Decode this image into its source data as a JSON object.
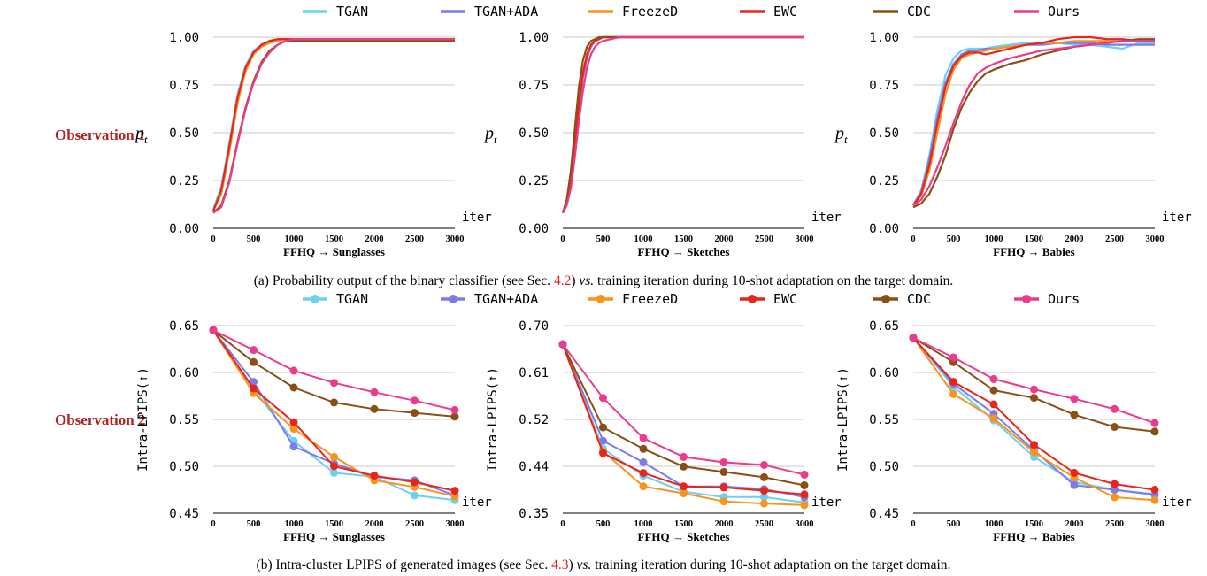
{
  "legend_top": [
    "TGAN",
    "TGAN+ADA",
    "FreezeD",
    "EWC",
    "CDC",
    "Ours"
  ],
  "legend_bottom": [
    "TGAN",
    "TGAN+ADA",
    "FreezeD",
    "EWC",
    "CDC",
    "Ours"
  ],
  "colors": {
    "TGAN": "#6ccff6",
    "TGAN+ADA": "#7b7bec",
    "FreezeD": "#f7941d",
    "EWC": "#e8251b",
    "CDC": "#8b4e14",
    "Ours": "#ec3a8c",
    "observation": "#b22222"
  },
  "observation1": "Observation 1",
  "observation2": "Observation 2",
  "ylabel_top": "p",
  "ylabel_top_sub": "t",
  "ylabel_bottom": "Intra-LPIPS(↑)",
  "xunit": "iter",
  "caption_a": {
    "before": "(a) Probability output of the binary classifier (see Sec. ",
    "ref": "4.2",
    "mid": ") ",
    "vs": "vs.",
    "after": " training iteration during 10-shot adaptation on the target domain."
  },
  "caption_b": {
    "before": "(b) Intra-cluster LPIPS of generated images (see Sec. ",
    "ref": "4.3",
    "mid": ") ",
    "vs": "vs.",
    "after": " training iteration during 10-shot adaptation on the target domain."
  },
  "chart_data": [
    {
      "type": "line",
      "row": "top",
      "xlabel": "FFHQ → Sunglasses",
      "ylabel": "p_t",
      "xlim": [
        0,
        3000
      ],
      "ylim": [
        0,
        1
      ],
      "xticks": [
        "0",
        "500",
        "1000",
        "1500",
        "2000",
        "2500",
        "3000"
      ],
      "yticks": [
        "0.00",
        "0.25",
        "0.50",
        "0.75",
        "1.00"
      ],
      "x": [
        0,
        100,
        200,
        300,
        400,
        500,
        600,
        700,
        800,
        900,
        1000,
        1250,
        1500,
        2000,
        2500,
        3000
      ],
      "series": [
        {
          "name": "TGAN",
          "values": [
            0.1,
            0.22,
            0.45,
            0.7,
            0.85,
            0.93,
            0.96,
            0.98,
            0.99,
            0.99,
            0.99,
            0.99,
            0.99,
            0.99,
            0.99,
            0.99
          ]
        },
        {
          "name": "TGAN+ADA",
          "values": [
            0.09,
            0.2,
            0.42,
            0.67,
            0.83,
            0.92,
            0.96,
            0.98,
            0.99,
            0.99,
            0.99,
            0.99,
            0.99,
            0.99,
            0.99,
            0.99
          ]
        },
        {
          "name": "FreezeD",
          "values": [
            0.09,
            0.18,
            0.4,
            0.65,
            0.82,
            0.91,
            0.95,
            0.97,
            0.98,
            0.99,
            0.99,
            0.99,
            0.99,
            0.99,
            0.99,
            0.99
          ]
        },
        {
          "name": "EWC",
          "values": [
            0.09,
            0.2,
            0.43,
            0.68,
            0.84,
            0.92,
            0.96,
            0.98,
            0.99,
            0.99,
            0.99,
            0.99,
            0.99,
            0.99,
            0.99,
            0.99
          ]
        },
        {
          "name": "CDC",
          "values": [
            0.08,
            0.12,
            0.25,
            0.45,
            0.63,
            0.77,
            0.87,
            0.93,
            0.96,
            0.98,
            0.98,
            0.98,
            0.98,
            0.98,
            0.98,
            0.98
          ]
        },
        {
          "name": "Ours",
          "values": [
            0.08,
            0.11,
            0.24,
            0.44,
            0.62,
            0.76,
            0.86,
            0.92,
            0.96,
            0.98,
            0.99,
            0.99,
            0.99,
            0.99,
            0.99,
            0.99
          ]
        }
      ]
    },
    {
      "type": "line",
      "row": "top",
      "xlabel": "FFHQ → Sketches",
      "ylabel": "p_t",
      "xlim": [
        0,
        3000
      ],
      "ylim": [
        0,
        1
      ],
      "xticks": [
        "0",
        "500",
        "1000",
        "1500",
        "2000",
        "2500",
        "3000"
      ],
      "yticks": [
        "0.00",
        "0.25",
        "0.50",
        "0.75",
        "1.00"
      ],
      "x": [
        0,
        50,
        100,
        150,
        200,
        250,
        300,
        350,
        400,
        450,
        500,
        600,
        700,
        800,
        1000,
        1500,
        2000,
        2500,
        3000
      ],
      "series": [
        {
          "name": "TGAN",
          "values": [
            0.08,
            0.13,
            0.24,
            0.42,
            0.63,
            0.8,
            0.9,
            0.95,
            0.98,
            0.99,
            1.0,
            1.0,
            1.0,
            1.0,
            1.0,
            1.0,
            1.0,
            1.0,
            1.0
          ]
        },
        {
          "name": "TGAN+ADA",
          "values": [
            0.08,
            0.13,
            0.23,
            0.41,
            0.62,
            0.79,
            0.89,
            0.95,
            0.98,
            0.99,
            1.0,
            1.0,
            1.0,
            1.0,
            1.0,
            1.0,
            1.0,
            1.0,
            1.0
          ]
        },
        {
          "name": "FreezeD",
          "values": [
            0.08,
            0.14,
            0.26,
            0.45,
            0.66,
            0.82,
            0.91,
            0.96,
            0.98,
            0.99,
            1.0,
            1.0,
            1.0,
            1.0,
            1.0,
            1.0,
            1.0,
            1.0,
            1.0
          ]
        },
        {
          "name": "EWC",
          "values": [
            0.08,
            0.14,
            0.25,
            0.44,
            0.65,
            0.81,
            0.91,
            0.96,
            0.98,
            0.99,
            1.0,
            1.0,
            1.0,
            1.0,
            1.0,
            1.0,
            1.0,
            1.0,
            1.0
          ]
        },
        {
          "name": "CDC",
          "values": [
            0.08,
            0.15,
            0.3,
            0.52,
            0.74,
            0.88,
            0.95,
            0.98,
            0.99,
            1.0,
            1.0,
            1.0,
            1.0,
            1.0,
            1.0,
            1.0,
            1.0,
            1.0,
            1.0
          ]
        },
        {
          "name": "Ours",
          "values": [
            0.08,
            0.12,
            0.21,
            0.37,
            0.56,
            0.72,
            0.84,
            0.91,
            0.95,
            0.97,
            0.98,
            0.99,
            1.0,
            1.0,
            1.0,
            1.0,
            1.0,
            1.0,
            1.0
          ]
        }
      ]
    },
    {
      "type": "line",
      "row": "top",
      "xlabel": "FFHQ → Babies",
      "ylabel": "p_t",
      "xlim": [
        0,
        3000
      ],
      "ylim": [
        0,
        1
      ],
      "xticks": [
        "0",
        "500",
        "1000",
        "1500",
        "2000",
        "2500",
        "3000"
      ],
      "yticks": [
        "0.00",
        "0.25",
        "0.50",
        "0.75",
        "1.00"
      ],
      "x": [
        0,
        100,
        200,
        300,
        400,
        500,
        600,
        700,
        800,
        900,
        1000,
        1200,
        1400,
        1600,
        1800,
        2000,
        2200,
        2400,
        2600,
        2800,
        3000
      ],
      "series": [
        {
          "name": "TGAN",
          "values": [
            0.12,
            0.2,
            0.38,
            0.62,
            0.8,
            0.89,
            0.93,
            0.94,
            0.94,
            0.94,
            0.95,
            0.96,
            0.97,
            0.97,
            0.97,
            0.96,
            0.96,
            0.95,
            0.94,
            0.97,
            0.97
          ]
        },
        {
          "name": "TGAN+ADA",
          "values": [
            0.12,
            0.19,
            0.36,
            0.58,
            0.76,
            0.86,
            0.91,
            0.93,
            0.93,
            0.94,
            0.94,
            0.95,
            0.96,
            0.96,
            0.97,
            0.97,
            0.97,
            0.96,
            0.96,
            0.96,
            0.96
          ]
        },
        {
          "name": "FreezeD",
          "values": [
            0.12,
            0.17,
            0.3,
            0.5,
            0.7,
            0.83,
            0.89,
            0.91,
            0.92,
            0.93,
            0.94,
            0.95,
            0.96,
            0.97,
            0.97,
            0.98,
            0.98,
            0.98,
            0.98,
            0.98,
            0.98
          ]
        },
        {
          "name": "EWC",
          "values": [
            0.12,
            0.18,
            0.33,
            0.55,
            0.74,
            0.85,
            0.9,
            0.92,
            0.92,
            0.91,
            0.92,
            0.94,
            0.96,
            0.97,
            0.99,
            1.0,
            1.0,
            0.99,
            0.99,
            0.98,
            0.98
          ]
        },
        {
          "name": "CDC",
          "values": [
            0.11,
            0.13,
            0.18,
            0.27,
            0.38,
            0.52,
            0.63,
            0.71,
            0.77,
            0.81,
            0.83,
            0.86,
            0.88,
            0.91,
            0.93,
            0.95,
            0.96,
            0.97,
            0.98,
            0.99,
            0.99
          ]
        },
        {
          "name": "Ours",
          "values": [
            0.12,
            0.15,
            0.22,
            0.32,
            0.43,
            0.55,
            0.66,
            0.75,
            0.81,
            0.84,
            0.86,
            0.89,
            0.91,
            0.93,
            0.94,
            0.95,
            0.96,
            0.97,
            0.98,
            0.98,
            0.98
          ]
        }
      ]
    },
    {
      "type": "line",
      "row": "bottom",
      "xlabel": "FFHQ → Sunglasses",
      "ylabel": "Intra-LPIPS(↑)",
      "xlim": [
        0,
        3000
      ],
      "ylim": [
        0.45,
        0.65
      ],
      "xticks": [
        "0",
        "500",
        "1000",
        "1500",
        "2000",
        "2500",
        "3000"
      ],
      "yticks": [
        "0.45",
        "0.50",
        "0.55",
        "0.60",
        "0.65"
      ],
      "x": [
        0,
        500,
        1000,
        1500,
        2000,
        2500,
        3000
      ],
      "series": [
        {
          "name": "TGAN",
          "values": [
            0.645,
            0.582,
            0.527,
            0.493,
            0.489,
            0.469,
            0.464
          ]
        },
        {
          "name": "TGAN+ADA",
          "values": [
            0.645,
            0.59,
            0.521,
            0.503,
            0.489,
            0.485,
            0.469
          ]
        },
        {
          "name": "FreezeD",
          "values": [
            0.645,
            0.578,
            0.54,
            0.51,
            0.485,
            0.478,
            0.468
          ]
        },
        {
          "name": "EWC",
          "values": [
            0.645,
            0.583,
            0.547,
            0.5,
            0.49,
            0.483,
            0.474
          ]
        },
        {
          "name": "CDC",
          "values": [
            0.645,
            0.611,
            0.584,
            0.568,
            0.561,
            0.557,
            0.553
          ]
        },
        {
          "name": "Ours",
          "values": [
            0.645,
            0.624,
            0.602,
            0.589,
            0.579,
            0.57,
            0.56
          ]
        }
      ]
    },
    {
      "type": "line",
      "row": "bottom",
      "xlabel": "FFHQ → Sketches",
      "ylabel": "Intra-LPIPS(↑)",
      "xlim": [
        0,
        3000
      ],
      "ylim": [
        0.35,
        0.7
      ],
      "xticks": [
        "0",
        "500",
        "1000",
        "1500",
        "2000",
        "2500",
        "3000"
      ],
      "yticks": [
        "0.35",
        "0.44",
        "0.52",
        "0.61",
        "0.70"
      ],
      "x": [
        0,
        500,
        1000,
        1500,
        2000,
        2500,
        3000
      ],
      "series": [
        {
          "name": "TGAN",
          "values": [
            0.665,
            0.47,
            0.42,
            0.39,
            0.38,
            0.38,
            0.37
          ]
        },
        {
          "name": "TGAN+ADA",
          "values": [
            0.665,
            0.485,
            0.445,
            0.4,
            0.4,
            0.395,
            0.38
          ]
        },
        {
          "name": "FreezeD",
          "values": [
            0.665,
            0.465,
            0.4,
            0.387,
            0.372,
            0.368,
            0.365
          ]
        },
        {
          "name": "EWC",
          "values": [
            0.665,
            0.462,
            0.425,
            0.4,
            0.398,
            0.392,
            0.385
          ]
        },
        {
          "name": "CDC",
          "values": [
            0.665,
            0.51,
            0.47,
            0.437,
            0.427,
            0.417,
            0.402
          ]
        },
        {
          "name": "Ours",
          "values": [
            0.665,
            0.565,
            0.49,
            0.455,
            0.445,
            0.44,
            0.422
          ]
        }
      ]
    },
    {
      "type": "line",
      "row": "bottom",
      "xlabel": "FFHQ → Babies",
      "ylabel": "Intra-LPIPS(↑)",
      "xlim": [
        0,
        3000
      ],
      "ylim": [
        0.45,
        0.65
      ],
      "xticks": [
        "0",
        "500",
        "1000",
        "1500",
        "2000",
        "2500",
        "3000"
      ],
      "yticks": [
        "0.45",
        "0.50",
        "0.55",
        "0.60",
        "0.65"
      ],
      "x": [
        0,
        500,
        1000,
        1500,
        2000,
        2500,
        3000
      ],
      "series": [
        {
          "name": "TGAN",
          "values": [
            0.637,
            0.585,
            0.549,
            0.51,
            0.483,
            0.475,
            0.469
          ]
        },
        {
          "name": "TGAN+ADA",
          "values": [
            0.637,
            0.588,
            0.556,
            0.517,
            0.48,
            0.475,
            0.47
          ]
        },
        {
          "name": "FreezeD",
          "values": [
            0.637,
            0.577,
            0.551,
            0.515,
            0.488,
            0.467,
            0.464
          ]
        },
        {
          "name": "EWC",
          "values": [
            0.637,
            0.59,
            0.566,
            0.523,
            0.493,
            0.481,
            0.475
          ]
        },
        {
          "name": "CDC",
          "values": [
            0.637,
            0.611,
            0.581,
            0.573,
            0.555,
            0.542,
            0.537
          ]
        },
        {
          "name": "Ours",
          "values": [
            0.637,
            0.616,
            0.593,
            0.582,
            0.572,
            0.561,
            0.546
          ]
        }
      ]
    }
  ]
}
